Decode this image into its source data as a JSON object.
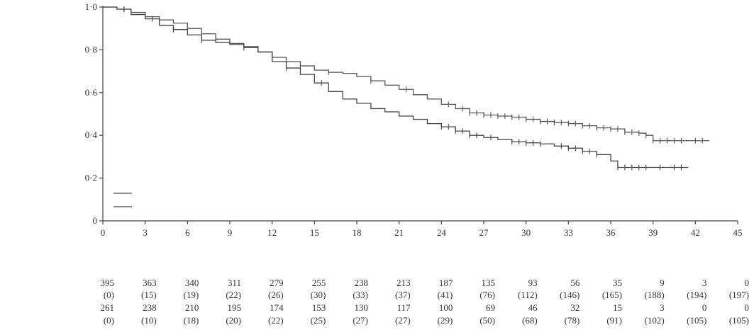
{
  "chart_data": {
    "type": "line",
    "title": "",
    "xlabel": "",
    "ylabel": "",
    "xlim": [
      0,
      45
    ],
    "ylim": [
      0,
      1
    ],
    "x_ticks": [
      0,
      3,
      6,
      9,
      12,
      15,
      18,
      21,
      24,
      27,
      30,
      33,
      36,
      39,
      42,
      45
    ],
    "x_tick_labels": [
      "0",
      "3",
      "6",
      "9",
      "12",
      "15",
      "18",
      "21",
      "24",
      "27",
      "30",
      "33",
      "36",
      "39",
      "42",
      "45"
    ],
    "y_ticks": [
      0,
      0.2,
      0.4,
      0.6,
      0.8,
      1.0
    ],
    "y_tick_labels": [
      "0",
      "0·2",
      "0·4",
      "0·6",
      "0·8",
      "1·0"
    ],
    "grid": false,
    "legend": "bottom-left",
    "colors": {
      "upper": "#555555",
      "lower": "#444444"
    },
    "series": [
      {
        "key": "upper",
        "x": [
          0,
          1,
          2,
          3,
          4,
          5,
          6,
          7,
          8,
          9,
          10,
          11,
          12,
          13,
          14,
          15,
          16,
          17,
          18,
          19,
          20,
          21,
          22,
          23,
          24,
          25,
          26,
          27,
          28,
          29,
          30,
          31,
          32,
          33,
          34,
          35,
          36,
          37,
          38,
          38.5,
          39,
          40,
          41,
          42,
          43
        ],
        "y": [
          1.0,
          0.99,
          0.975,
          0.955,
          0.94,
          0.925,
          0.9,
          0.875,
          0.85,
          0.83,
          0.81,
          0.79,
          0.765,
          0.745,
          0.725,
          0.705,
          0.695,
          0.69,
          0.675,
          0.655,
          0.635,
          0.615,
          0.59,
          0.57,
          0.545,
          0.525,
          0.505,
          0.495,
          0.49,
          0.485,
          0.475,
          0.465,
          0.46,
          0.455,
          0.445,
          0.435,
          0.43,
          0.415,
          0.41,
          0.4,
          0.375,
          0.375,
          0.375,
          0.375,
          0.375
        ],
        "censored_x": [
          1.5,
          4,
          6,
          8,
          10,
          12,
          14,
          16,
          19,
          21.5,
          24.5,
          25.5,
          26,
          26.5,
          27,
          27.5,
          28,
          28.5,
          29,
          29.5,
          30,
          30.5,
          31,
          31.5,
          32,
          32.5,
          33,
          33.5,
          34,
          34.5,
          35,
          35.5,
          36,
          36.5,
          37,
          37.5,
          38,
          38.5,
          39,
          39.5,
          40,
          40.5,
          41,
          42,
          42.5
        ]
      },
      {
        "key": "lower",
        "x": [
          0,
          1,
          2,
          3,
          4,
          5,
          6,
          7,
          8,
          9,
          10,
          11,
          12,
          13,
          14,
          15,
          16,
          17,
          18,
          19,
          20,
          21,
          22,
          23,
          24,
          25,
          26,
          27,
          28,
          29,
          30,
          31,
          32,
          33,
          34,
          35,
          36,
          36.5,
          37,
          38,
          39,
          40,
          41,
          41.5
        ],
        "y": [
          1.0,
          0.99,
          0.965,
          0.945,
          0.915,
          0.895,
          0.87,
          0.845,
          0.835,
          0.825,
          0.815,
          0.79,
          0.745,
          0.715,
          0.685,
          0.645,
          0.605,
          0.57,
          0.55,
          0.525,
          0.51,
          0.49,
          0.475,
          0.455,
          0.44,
          0.42,
          0.4,
          0.39,
          0.38,
          0.37,
          0.365,
          0.36,
          0.35,
          0.34,
          0.325,
          0.31,
          0.28,
          0.25,
          0.25,
          0.25,
          0.25,
          0.25,
          0.25,
          0.25
        ],
        "censored_x": [
          1.5,
          3.5,
          5,
          7,
          10,
          13,
          15.5,
          24,
          24.5,
          25,
          25.5,
          26,
          26.5,
          27.5,
          29,
          29.5,
          30,
          30.5,
          31,
          32.5,
          33,
          33.5,
          34,
          34.5,
          35,
          36.5,
          37,
          37.5,
          38,
          38.5,
          39.5,
          40.5,
          41
        ]
      }
    ],
    "risk_table": {
      "rows": [
        {
          "label": "",
          "counts": [
            "395",
            "363",
            "340",
            "311",
            "279",
            "255",
            "238",
            "213",
            "187",
            "135",
            "93",
            "56",
            "35",
            "9",
            "3",
            "0"
          ]
        },
        {
          "label": "",
          "counts": [
            "(0)",
            "(15)",
            "(19)",
            "(22)",
            "(26)",
            "(30)",
            "(33)",
            "(37)",
            "(41)",
            "(76)",
            "(112)",
            "(146)",
            "(165)",
            "(188)",
            "(194)",
            "(197)"
          ]
        },
        {
          "label": "",
          "counts": [
            "261",
            "238",
            "210",
            "195",
            "174",
            "153",
            "130",
            "117",
            "100",
            "69",
            "46",
            "32",
            "15",
            "3",
            "0",
            "0"
          ]
        },
        {
          "label": "",
          "counts": [
            "(0)",
            "(10)",
            "(18)",
            "(20)",
            "(22)",
            "(25)",
            "(27)",
            "(27)",
            "(29)",
            "(50)",
            "(68)",
            "(78)",
            "(91)",
            "(102)",
            "(105)",
            "(105)"
          ]
        }
      ]
    }
  }
}
